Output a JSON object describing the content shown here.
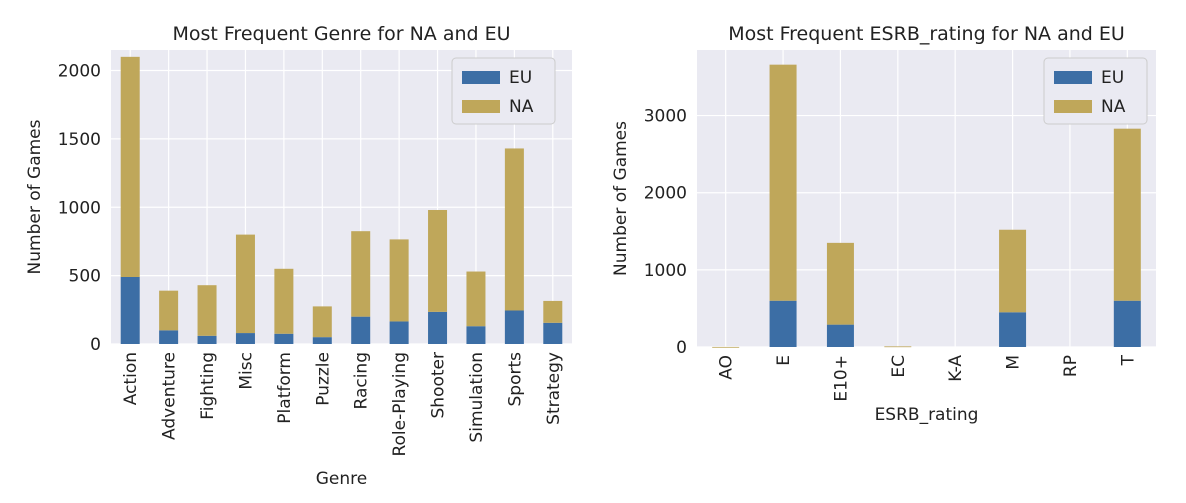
{
  "chart_data": [
    {
      "type": "bar",
      "stacked": true,
      "title": "Most Frequent Genre for NA and EU",
      "xlabel": "Genre",
      "ylabel": "Number of Games",
      "categories": [
        "Action",
        "Adventure",
        "Fighting",
        "Misc",
        "Platform",
        "Puzzle",
        "Racing",
        "Role-Playing",
        "Shooter",
        "Simulation",
        "Sports",
        "Strategy"
      ],
      "series": [
        {
          "name": "EU",
          "values": [
            490,
            100,
            60,
            80,
            75,
            50,
            200,
            165,
            235,
            130,
            245,
            155
          ]
        },
        {
          "name": "NA",
          "values": [
            1610,
            290,
            370,
            720,
            475,
            225,
            625,
            600,
            745,
            400,
            1185,
            160
          ]
        }
      ],
      "ylim": [
        0,
        2150
      ],
      "yticks": [
        0,
        500,
        1000,
        1500,
        2000
      ],
      "grid": true,
      "legend": "top-right",
      "colors": {
        "EU": "#3c6ea5",
        "NA": "#bfa75a"
      }
    },
    {
      "type": "bar",
      "stacked": true,
      "title": "Most Frequent ESRB_rating for NA and EU",
      "xlabel": "ESRB_rating",
      "ylabel": "Number of Games",
      "categories": [
        "AO",
        "E",
        "E10+",
        "EC",
        "K-A",
        "M",
        "RP",
        "T"
      ],
      "series": [
        {
          "name": "EU",
          "values": [
            0,
            600,
            290,
            0,
            0,
            450,
            0,
            600
          ]
        },
        {
          "name": "NA",
          "values": [
            1,
            3060,
            1060,
            8,
            0,
            1070,
            0,
            2230
          ]
        }
      ],
      "ylim": [
        0,
        3850
      ],
      "yticks": [
        0,
        1000,
        2000,
        3000
      ],
      "grid": true,
      "legend": "top-right",
      "colors": {
        "EU": "#3c6ea5",
        "NA": "#bfa75a"
      }
    }
  ]
}
